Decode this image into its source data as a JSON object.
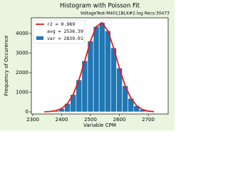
{
  "chart_data": {
    "type": "histogram",
    "title": "Histogram with Poisson Fit",
    "subtitle": "VoltageTest-M4011BLK#2.log   Recs:30473",
    "x_label": "Variable CPM",
    "y_label": "Frequency of Occurence",
    "bins": [
      2370,
      2390,
      2410,
      2430,
      2450,
      2470,
      2490,
      2510,
      2530,
      2550,
      2570,
      2590,
      2610,
      2630,
      2650,
      2670,
      2690,
      2710
    ],
    "series": [
      {
        "name": "var = 2839.01",
        "color": "#1f77b4",
        "values": [
          62,
          172,
          422,
          885,
          1632,
          2605,
          3615,
          4352,
          4552,
          4137,
          3266,
          2237,
          1331,
          689,
          310,
          120,
          41
        ]
      },
      {
        "name": "r2 = 0.989",
        "color": "#e41a1c",
        "type": "line",
        "x": [
          2340,
          2360,
          2380,
          2400,
          2420,
          2440,
          2460,
          2480,
          2500,
          2520,
          2540,
          2560,
          2580,
          2600,
          2620,
          2640,
          2660,
          2680,
          2700,
          2720
        ],
        "values": [
          5,
          19,
          62,
          172,
          422,
          885,
          1632,
          2605,
          3615,
          4352,
          4552,
          4137,
          3266,
          2237,
          1331,
          689,
          310,
          120,
          41,
          12
        ]
      }
    ],
    "annotation": "avg = 2536.39",
    "xlim": [
      2295,
      2769
    ],
    "ylim": [
      -109,
      4800
    ],
    "xticks": [
      2300,
      2400,
      2500,
      2600,
      2700
    ],
    "yticks": [
      0,
      1000,
      2000,
      3000,
      4000
    ],
    "legend": "upper left"
  }
}
